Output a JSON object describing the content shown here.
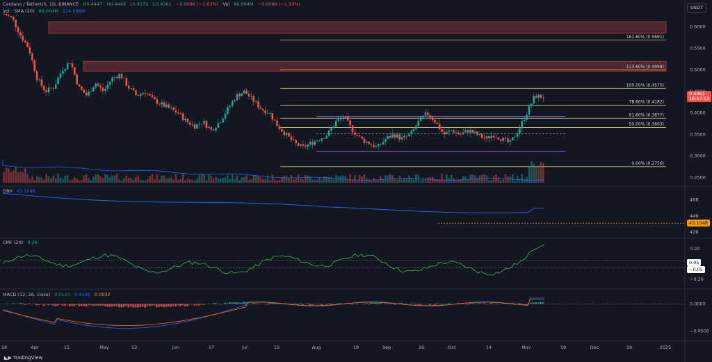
{
  "header": {
    "symbol": "Cardano / TetherUS, 1D, BINANCE",
    "o": "O0.4447",
    "h": "H0.4448",
    "l": "L0.4272",
    "c": "C0.4361",
    "change": "−0.0086 (−1.93%)",
    "vol": "Vol",
    "vol_value": "86.004M",
    "vol_change": "−0.0086 (−1.93%)",
    "vol_sma_label": "Vol · SMA (20)",
    "vol_sma_v1": "86.004M",
    "vol_sma_v2": "124.089M"
  },
  "currency_button": "USDT",
  "price_axis": {
    "ticks": [
      "0.6000",
      "0.5500",
      "0.5000",
      "0.4500",
      "0.4000",
      "0.3500",
      "0.3000",
      "0.2500"
    ],
    "current_price": "0.4361",
    "countdown": "16:57:13",
    "range": [
      0.235,
      0.63
    ]
  },
  "fib_levels": [
    {
      "label": "161.80% (0.5691)",
      "value": 0.5691
    },
    {
      "label": "123.60% (0.4998)",
      "value": 0.4998
    },
    {
      "label": "100.00% (0.4570)",
      "value": 0.457
    },
    {
      "label": "78.60% (0.4182)",
      "value": 0.4182
    },
    {
      "label": "61.80% (0.3877)",
      "value": 0.3877
    },
    {
      "label": "50.00% (0.3663)",
      "value": 0.3663
    },
    {
      "label": "0.00% (0.2756)",
      "value": 0.2756
    }
  ],
  "zones": [
    {
      "low": 0.585,
      "high": 0.612
    },
    {
      "low": 0.497,
      "high": 0.52
    }
  ],
  "channel": {
    "upper": 0.392,
    "lower": 0.311,
    "mid": 0.352
  },
  "time_axis": [
    "18",
    "Apr",
    "15",
    "May",
    "13",
    "Jun",
    "17",
    "Jul",
    "15",
    "Aug",
    "19",
    "Sep",
    "16",
    "Oct",
    "14",
    "Nov",
    "18",
    "Dec",
    "16",
    "2025"
  ],
  "obv": {
    "label": "OBV",
    "value": "43.104B",
    "ticks": [
      "46B",
      "44B",
      "42B"
    ],
    "range": [
      41.5,
      47.5
    ]
  },
  "cmf": {
    "label": "CMF (20)",
    "value": "0.26",
    "ticks": [
      "0.20",
      "0.05",
      "−0.05",
      "−0.20"
    ],
    "range": [
      -0.3,
      0.32
    ]
  },
  "macd": {
    "label": "MACD (12, 26, close)",
    "v1": "0.0110",
    "v2": "0.0142",
    "v3": "0.0032",
    "ticks": [
      "0.0000",
      "−0.0500"
    ],
    "range": [
      -0.065,
      0.025
    ]
  },
  "colors": {
    "up": "#26a69a",
    "down": "#ef5350",
    "fib": "#c8c66f",
    "channel": "#7e57c2",
    "obv": "#2962ff",
    "cmf": "#4caf50",
    "macd": "#2962ff",
    "signal": "#ff6d00"
  },
  "footer": "TradingView",
  "chart_data": {
    "type": "candlestick",
    "series": [
      {
        "name": "ADA/USDT close (approx)",
        "values": [
          0.63,
          0.62,
          0.58,
          0.55,
          0.48,
          0.45,
          0.46,
          0.5,
          0.52,
          0.46,
          0.44,
          0.47,
          0.45,
          0.48,
          0.49,
          0.46,
          0.44,
          0.45,
          0.43,
          0.42,
          0.41,
          0.4,
          0.38,
          0.37,
          0.38,
          0.36,
          0.38,
          0.41,
          0.44,
          0.45,
          0.43,
          0.41,
          0.4,
          0.37,
          0.35,
          0.33,
          0.32,
          0.33,
          0.34,
          0.35,
          0.38,
          0.39,
          0.36,
          0.34,
          0.33,
          0.32,
          0.34,
          0.35,
          0.34,
          0.35,
          0.38,
          0.4,
          0.38,
          0.35,
          0.36,
          0.35,
          0.36,
          0.35,
          0.34,
          0.35,
          0.34,
          0.33,
          0.36,
          0.4,
          0.44,
          0.4361
        ]
      }
    ]
  }
}
